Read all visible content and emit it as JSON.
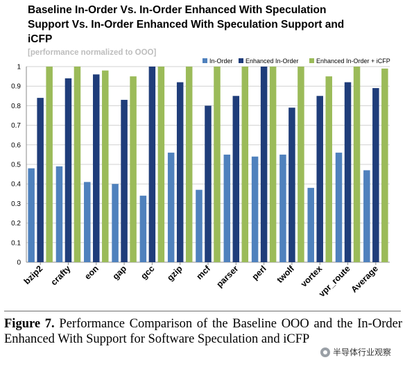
{
  "caption": {
    "label": "Figure 7.",
    "text": "Performance Comparison of the Baseline OOO and the In-Order Enhanced With Support for Software Speculation and iCFP"
  },
  "watermark": {
    "text": "半导体行业观察"
  },
  "chart_data": {
    "type": "bar",
    "title": "Baseline In-Order  Vs. In-Order Enhanced With Speculation Support  Vs. In-Order Enhanced With Speculation Support and iCFP",
    "subtitle": "[performance normalized to OOO]",
    "xlabel": "",
    "ylabel": "",
    "ylim": [
      0,
      1
    ],
    "yticks": [
      0,
      0.1,
      0.2,
      0.3,
      0.4,
      0.5,
      0.6,
      0.7,
      0.8,
      0.9,
      1
    ],
    "ytick_labels": [
      "0",
      "0.1",
      "0.2",
      "0.3",
      "0.4",
      "0.5",
      "0.6",
      "0.7",
      "0.8",
      "0.9",
      "1"
    ],
    "grid": true,
    "legend_position": "top",
    "categories": [
      "bzip2",
      "crafty",
      "eon",
      "gap",
      "gcc",
      "gzip",
      "mcf",
      "parser",
      "perl",
      "twolf",
      "vortex",
      "vpr_route",
      "Average"
    ],
    "series": [
      {
        "name": "In-Order",
        "color": "#4f81bd",
        "values": [
          0.48,
          0.49,
          0.41,
          0.4,
          0.34,
          0.56,
          0.37,
          0.55,
          0.54,
          0.55,
          0.38,
          0.56,
          0.47
        ]
      },
      {
        "name": "Enhanced In-Order",
        "color": "#1f3d7a",
        "values": [
          0.84,
          0.94,
          0.96,
          0.83,
          1.0,
          0.92,
          0.8,
          0.85,
          1.0,
          0.79,
          0.85,
          0.92,
          0.89
        ]
      },
      {
        "name": "Enhanced In-Order + iCFP",
        "color": "#9bbb59",
        "values": [
          1.0,
          1.0,
          0.98,
          0.95,
          1.0,
          1.0,
          1.0,
          1.0,
          1.0,
          1.0,
          0.95,
          1.0,
          0.99
        ]
      }
    ]
  }
}
